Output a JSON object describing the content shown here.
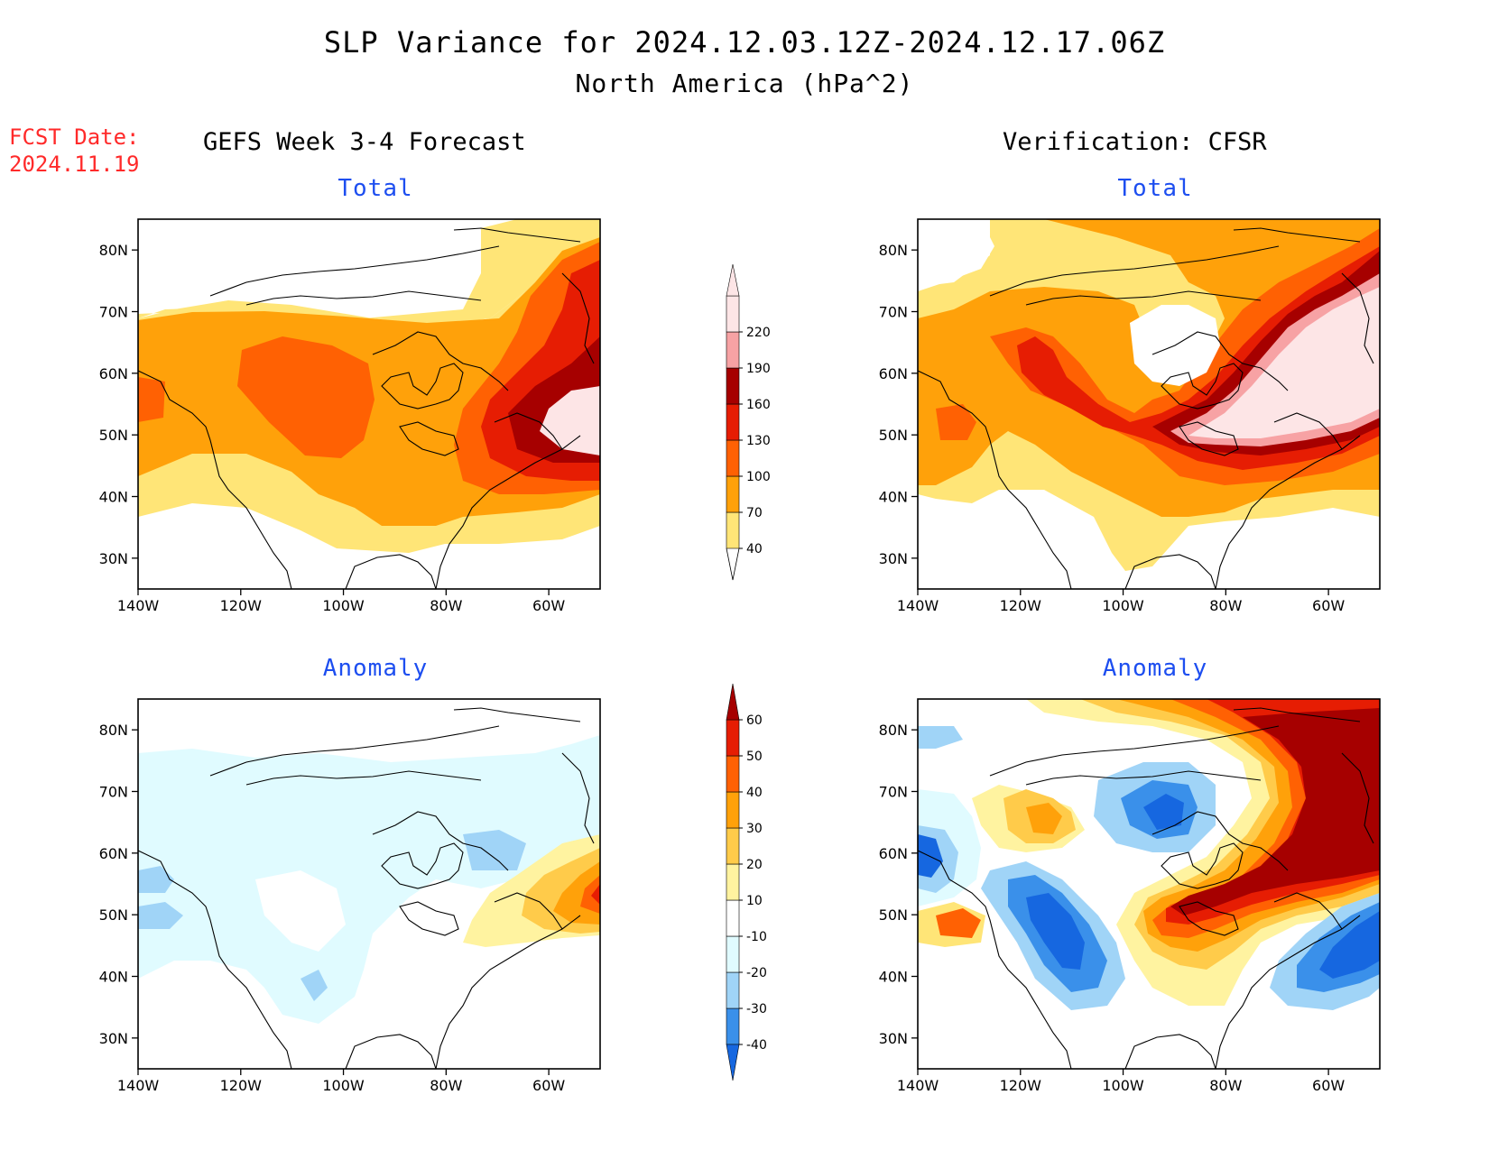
{
  "header": {
    "title": "SLP Variance for 2024.12.03.12Z-2024.12.17.06Z",
    "subtitle": "North America (hPa^2)",
    "fcst_label": "FCST Date:",
    "fcst_date": "2024.11.19"
  },
  "columns": {
    "left": "GEFS Week 3-4 Forecast",
    "right": "Verification: CFSR"
  },
  "panels": [
    {
      "id": "fcst-total",
      "title": "Total",
      "field": "total"
    },
    {
      "id": "verif-total",
      "title": "Total",
      "field": "total"
    },
    {
      "id": "fcst-anomaly",
      "title": "Anomaly",
      "field": "anomaly"
    },
    {
      "id": "verif-anomaly",
      "title": "Anomaly",
      "field": "anomaly"
    }
  ],
  "axes": {
    "lat_labels": [
      "80N",
      "70N",
      "60N",
      "50N",
      "40N",
      "30N"
    ],
    "lat_values": [
      80,
      70,
      60,
      50,
      40,
      30
    ],
    "lon_labels": [
      "140W",
      "120W",
      "100W",
      "80W",
      "60W"
    ],
    "lon_values": [
      -140,
      -120,
      -100,
      -80,
      -60
    ],
    "lon_range": [
      -140,
      -50
    ],
    "lat_range": [
      25,
      85
    ]
  },
  "colorbars": {
    "total": {
      "labels": [
        "40",
        "70",
        "100",
        "130",
        "160",
        "190",
        "220"
      ],
      "colors": [
        "#ffe577",
        "#ffa10a",
        "#ff6103",
        "#e61d03",
        "#a60000",
        "#f7a2a4",
        "#fde5e6"
      ]
    },
    "anomaly": {
      "labels": [
        "-40",
        "-30",
        "-20",
        "-10",
        "10",
        "20",
        "30",
        "40",
        "50",
        "60"
      ],
      "colors": [
        "#1667e0",
        "#3a90ea",
        "#a0d4f7",
        "#e0fbff",
        "#ffffff",
        "#fff3a0",
        "#ffcb4a",
        "#ffa10a",
        "#ff6103",
        "#e61d03",
        "#a60000"
      ]
    }
  }
}
